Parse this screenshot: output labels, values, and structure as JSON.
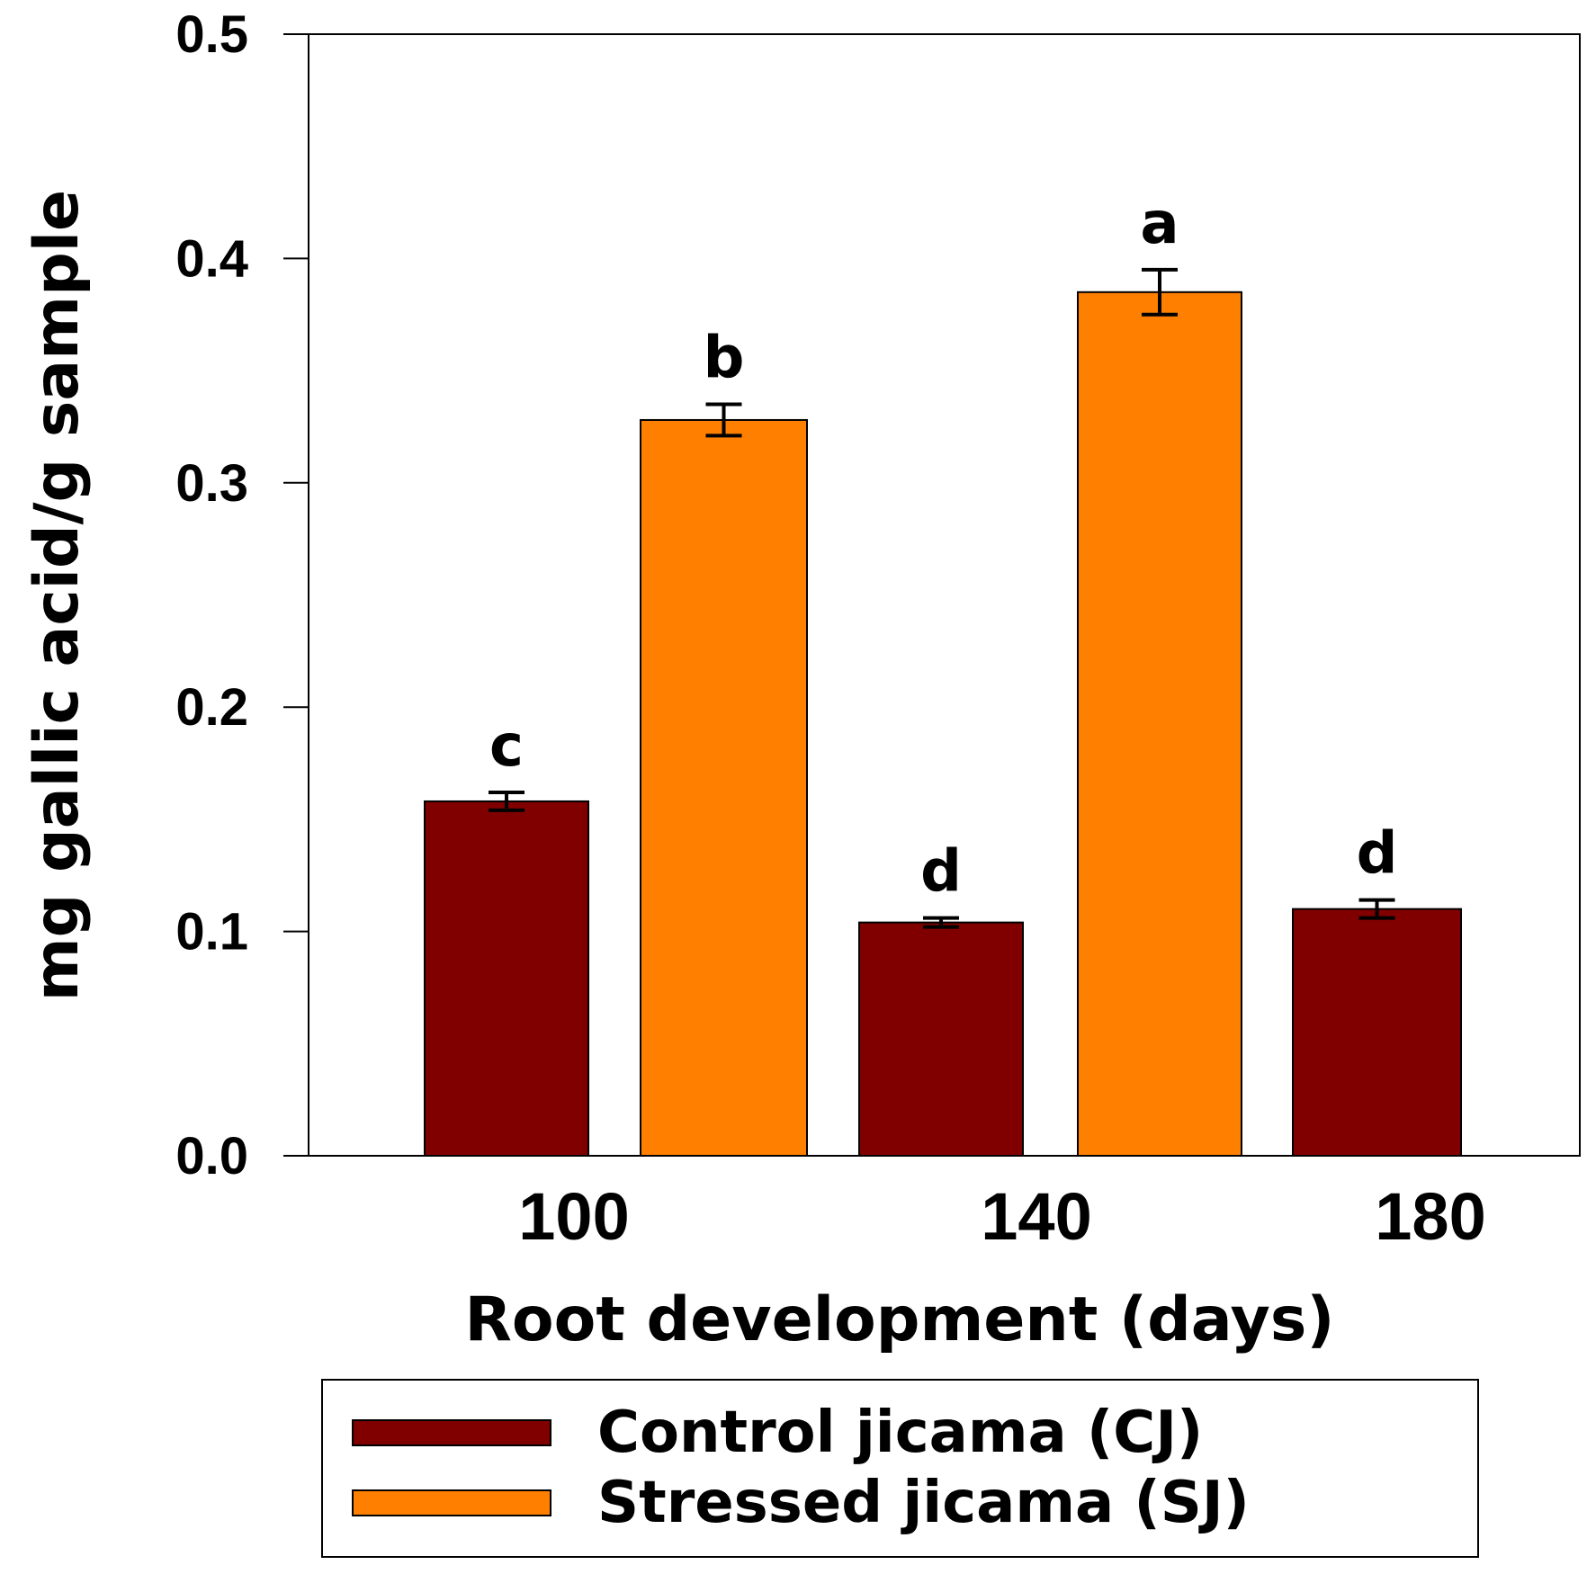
{
  "chart_data": {
    "type": "bar",
    "xlabel": "Root development (days)",
    "ylabel": "mg gallic acid/g sample",
    "ylim": [
      0,
      0.5
    ],
    "yticks": [
      "0.0",
      "0.1",
      "0.2",
      "0.3",
      "0.4",
      "0.5"
    ],
    "categories": [
      "100",
      "140",
      "180"
    ],
    "series": [
      {
        "name": "Control jicama (CJ)",
        "color": "#800000",
        "values": [
          0.158,
          0.104,
          0.11
        ],
        "errors": [
          0.004,
          0.002,
          0.004
        ],
        "significance": [
          "c",
          "d",
          "d"
        ]
      },
      {
        "name": "Stressed jicama (SJ)",
        "color": "#FF8000",
        "values": [
          0.328,
          0.385,
          null
        ],
        "errors": [
          0.007,
          0.01,
          null
        ],
        "significance": [
          "b",
          "a",
          null
        ]
      }
    ],
    "legend_position": "bottom"
  }
}
